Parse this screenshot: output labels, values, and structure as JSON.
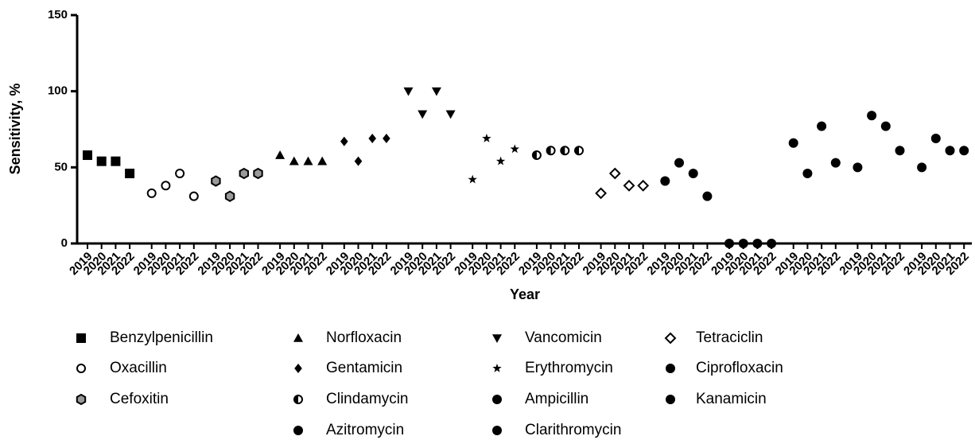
{
  "chart_data": {
    "type": "scatter",
    "x_label": "Year",
    "y_label": "Sensitivity, %",
    "categories": [
      "2019",
      "2020",
      "2021",
      "2022",
      "2019",
      "2020",
      "2021",
      "2022",
      "2019",
      "2020",
      "2021",
      "2022",
      "2019",
      "2020",
      "2021",
      "2022",
      "2019",
      "2020",
      "2021",
      "2022",
      "2019",
      "2020",
      "2021",
      "2022",
      "2019",
      "2020",
      "2021",
      "2022",
      "2019",
      "2020",
      "2021",
      "2022",
      "2019",
      "2020",
      "2021",
      "2022",
      "2019",
      "2020",
      "2021",
      "2022",
      "2019",
      "2020",
      "2021",
      "2022",
      "2019",
      "2020",
      "2021",
      "2022",
      "2019",
      "2020",
      "2021",
      "2022",
      "2019",
      "2020",
      "2021",
      "2022"
    ],
    "ylim": [
      0,
      150
    ],
    "yticks": [
      0,
      50,
      100,
      150
    ],
    "series": [
      {
        "name": "Benzylpenicillin",
        "marker": "square",
        "color": "#000000",
        "values": [
          58,
          54,
          54,
          46,
          null,
          null,
          null,
          null,
          null,
          null,
          null,
          null,
          null,
          null,
          null,
          null,
          null,
          null,
          null,
          null,
          null,
          null,
          null,
          null,
          null,
          null,
          null,
          null,
          null,
          null,
          null,
          null,
          null,
          null,
          null,
          null,
          null,
          null,
          null,
          null,
          null,
          null,
          null,
          null,
          null,
          null,
          null,
          null,
          null,
          null,
          null,
          null,
          null,
          null,
          null,
          null
        ]
      },
      {
        "name": "Oxacillin",
        "marker": "circle-open",
        "color": "#000000",
        "values": [
          null,
          null,
          null,
          null,
          33,
          38,
          46,
          31,
          null,
          null,
          null,
          null,
          null,
          null,
          null,
          null,
          null,
          null,
          null,
          null,
          null,
          null,
          null,
          null,
          null,
          null,
          null,
          null,
          null,
          null,
          null,
          null,
          null,
          null,
          null,
          null,
          null,
          null,
          null,
          null,
          null,
          null,
          null,
          null,
          null,
          null,
          null,
          null,
          null,
          null,
          null,
          null,
          null,
          null,
          null,
          null
        ]
      },
      {
        "name": "Cefoxitin",
        "marker": "hexagon",
        "color": "#000000",
        "values": [
          null,
          null,
          null,
          null,
          null,
          null,
          null,
          null,
          41,
          31,
          46,
          46,
          null,
          null,
          null,
          null,
          null,
          null,
          null,
          null,
          null,
          null,
          null,
          null,
          null,
          null,
          null,
          null,
          null,
          null,
          null,
          null,
          null,
          null,
          null,
          null,
          null,
          null,
          null,
          null,
          null,
          null,
          null,
          null,
          null,
          null,
          null,
          null,
          null,
          null,
          null,
          null,
          null,
          null,
          null,
          null
        ]
      },
      {
        "name": "Norfloxacin",
        "marker": "triangle-up",
        "color": "#000000",
        "values": [
          null,
          null,
          null,
          null,
          null,
          null,
          null,
          null,
          null,
          null,
          null,
          null,
          58,
          54,
          54,
          54,
          null,
          null,
          null,
          null,
          null,
          null,
          null,
          null,
          null,
          null,
          null,
          null,
          null,
          null,
          null,
          null,
          null,
          null,
          null,
          null,
          null,
          null,
          null,
          null,
          null,
          null,
          null,
          null,
          null,
          null,
          null,
          null,
          null,
          null,
          null,
          null,
          null,
          null,
          null,
          null
        ]
      },
      {
        "name": "Gentamicin",
        "marker": "diamond",
        "color": "#000000",
        "values": [
          null,
          null,
          null,
          null,
          null,
          null,
          null,
          null,
          null,
          null,
          null,
          null,
          null,
          null,
          null,
          null,
          67,
          54,
          69,
          69,
          null,
          null,
          null,
          null,
          null,
          null,
          null,
          null,
          null,
          null,
          null,
          null,
          null,
          null,
          null,
          null,
          null,
          null,
          null,
          null,
          null,
          null,
          null,
          null,
          null,
          null,
          null,
          null,
          null,
          null,
          null,
          null,
          null,
          null,
          null,
          null
        ]
      },
      {
        "name": "Clindamycin",
        "marker": "half-circle",
        "color": "#000000",
        "values": [
          null,
          null,
          null,
          null,
          null,
          null,
          null,
          null,
          null,
          null,
          null,
          null,
          null,
          null,
          null,
          null,
          null,
          null,
          null,
          null,
          null,
          null,
          null,
          null,
          null,
          null,
          null,
          null,
          58,
          61,
          61,
          61,
          null,
          null,
          null,
          null,
          null,
          null,
          null,
          null,
          null,
          null,
          null,
          null,
          null,
          null,
          null,
          null,
          null,
          null,
          null,
          null,
          null,
          null,
          null,
          null
        ]
      },
      {
        "name": "Azitromycin",
        "marker": "circle",
        "color": "#000000",
        "values": [
          null,
          null,
          null,
          null,
          null,
          null,
          null,
          null,
          null,
          null,
          null,
          null,
          null,
          null,
          null,
          null,
          null,
          null,
          null,
          null,
          null,
          null,
          null,
          null,
          null,
          null,
          null,
          null,
          null,
          null,
          null,
          null,
          null,
          null,
          null,
          null,
          null,
          null,
          null,
          null,
          0,
          0,
          0,
          0,
          null,
          null,
          null,
          null,
          null,
          null,
          null,
          null,
          null,
          null,
          null,
          null
        ]
      },
      {
        "name": "Vancomicin",
        "marker": "triangle-down",
        "color": "#000000",
        "values": [
          null,
          null,
          null,
          null,
          null,
          null,
          null,
          null,
          null,
          null,
          null,
          null,
          null,
          null,
          null,
          null,
          null,
          null,
          null,
          null,
          100,
          85,
          100,
          85,
          null,
          null,
          null,
          null,
          null,
          null,
          null,
          null,
          null,
          null,
          null,
          null,
          null,
          null,
          null,
          null,
          null,
          null,
          null,
          null,
          null,
          null,
          null,
          null,
          null,
          null,
          null,
          null,
          null,
          null,
          null,
          null
        ]
      },
      {
        "name": "Erythromycin",
        "marker": "star",
        "color": "#000000",
        "values": [
          null,
          null,
          null,
          null,
          null,
          null,
          null,
          null,
          null,
          null,
          null,
          null,
          null,
          null,
          null,
          null,
          null,
          null,
          null,
          null,
          null,
          null,
          null,
          null,
          42,
          69,
          54,
          62,
          null,
          null,
          null,
          null,
          null,
          null,
          null,
          null,
          null,
          null,
          null,
          null,
          null,
          null,
          null,
          null,
          null,
          null,
          null,
          null,
          null,
          null,
          null,
          null,
          null,
          null,
          null,
          null
        ]
      },
      {
        "name": "Ampicillin",
        "marker": "circle",
        "color": "#000000",
        "values": [
          null,
          null,
          null,
          null,
          null,
          null,
          null,
          null,
          null,
          null,
          null,
          null,
          null,
          null,
          null,
          null,
          null,
          null,
          null,
          null,
          null,
          null,
          null,
          null,
          null,
          null,
          null,
          null,
          null,
          null,
          null,
          null,
          null,
          null,
          null,
          null,
          41,
          53,
          46,
          31,
          null,
          null,
          null,
          null,
          null,
          null,
          null,
          null,
          null,
          null,
          null,
          null,
          null,
          null,
          null,
          null
        ]
      },
      {
        "name": "Clarithromycin",
        "marker": "circle",
        "color": "#000000",
        "values": [
          null,
          null,
          null,
          null,
          null,
          null,
          null,
          null,
          null,
          null,
          null,
          null,
          null,
          null,
          null,
          null,
          null,
          null,
          null,
          null,
          null,
          null,
          null,
          null,
          null,
          null,
          null,
          null,
          null,
          null,
          null,
          null,
          null,
          null,
          null,
          null,
          null,
          null,
          null,
          null,
          null,
          null,
          null,
          null,
          66,
          46,
          77,
          53,
          null,
          null,
          null,
          null,
          null,
          null,
          null,
          null
        ]
      },
      {
        "name": "Tetraciclin",
        "marker": "diamond-open",
        "color": "#000000",
        "values": [
          null,
          null,
          null,
          null,
          null,
          null,
          null,
          null,
          null,
          null,
          null,
          null,
          null,
          null,
          null,
          null,
          null,
          null,
          null,
          null,
          null,
          null,
          null,
          null,
          null,
          null,
          null,
          null,
          null,
          null,
          null,
          null,
          33,
          46,
          38,
          38,
          null,
          null,
          null,
          null,
          null,
          null,
          null,
          null,
          null,
          null,
          null,
          null,
          null,
          null,
          null,
          null,
          null,
          null,
          null,
          null
        ]
      },
      {
        "name": "Ciprofloxacin",
        "marker": "circle",
        "color": "#000000",
        "values": [
          null,
          null,
          null,
          null,
          null,
          null,
          null,
          null,
          null,
          null,
          null,
          null,
          null,
          null,
          null,
          null,
          null,
          null,
          null,
          null,
          null,
          null,
          null,
          null,
          null,
          null,
          null,
          null,
          null,
          null,
          null,
          null,
          null,
          null,
          null,
          null,
          null,
          null,
          null,
          null,
          null,
          null,
          null,
          null,
          null,
          null,
          null,
          null,
          50,
          84,
          77,
          61,
          null,
          null,
          null,
          null
        ]
      },
      {
        "name": "Kanamicin",
        "marker": "circle",
        "color": "#000000",
        "values": [
          null,
          null,
          null,
          null,
          null,
          null,
          null,
          null,
          null,
          null,
          null,
          null,
          null,
          null,
          null,
          null,
          null,
          null,
          null,
          null,
          null,
          null,
          null,
          null,
          null,
          null,
          null,
          null,
          null,
          null,
          null,
          null,
          null,
          null,
          null,
          null,
          null,
          null,
          null,
          null,
          null,
          null,
          null,
          null,
          null,
          null,
          null,
          null,
          null,
          null,
          null,
          null,
          50,
          69,
          61,
          61
        ]
      }
    ]
  }
}
